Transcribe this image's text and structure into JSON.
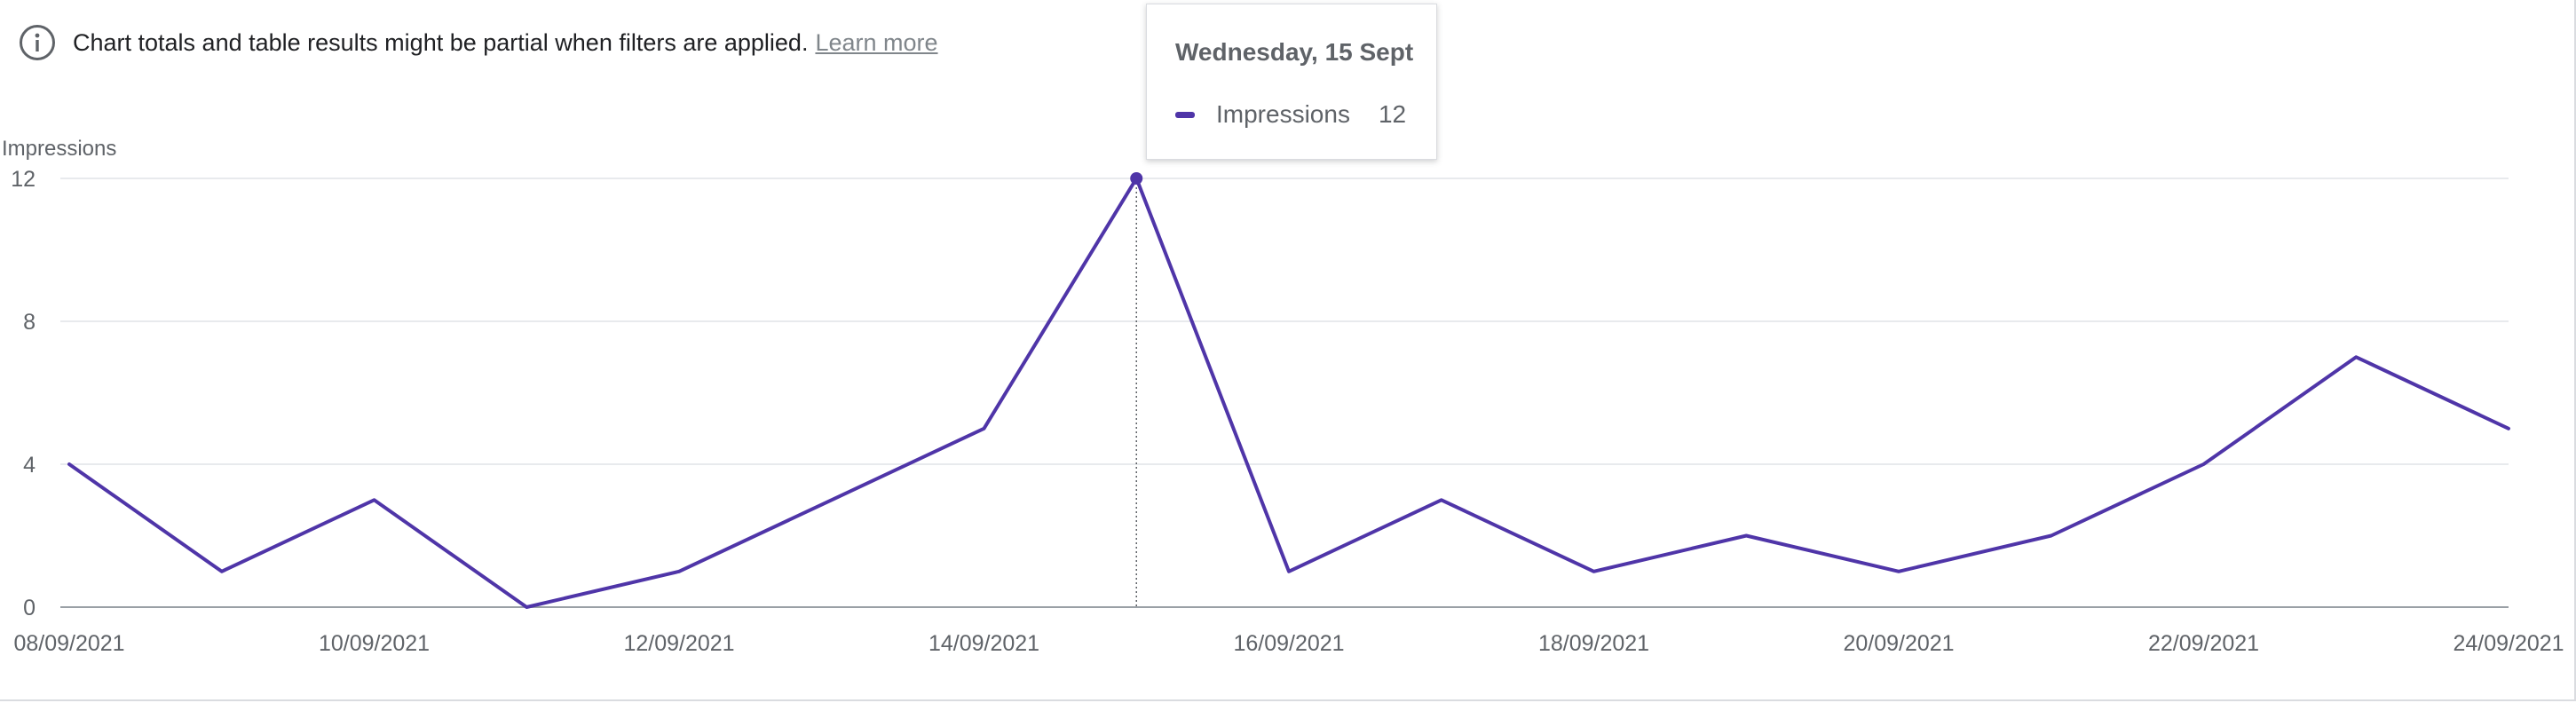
{
  "notice": {
    "icon": "info-icon",
    "text": "Chart totals and table results might be partial when filters are applied.",
    "link": "Learn more"
  },
  "tooltip": {
    "title": "Wednesday, 15 Sept",
    "series_name": "Impressions",
    "value": "12"
  },
  "colors": {
    "series": "#4f35a8",
    "grid": "#e8eaed",
    "axis": "#9aa0a6",
    "tick_text": "#5f6368"
  },
  "chart_data": {
    "type": "line",
    "ylabel": "Impressions",
    "xlabel": "",
    "ylim": [
      0,
      12
    ],
    "yticks": [
      0,
      4,
      8,
      12
    ],
    "grid": true,
    "x": [
      "08/09/2021",
      "09/09/2021",
      "10/09/2021",
      "11/09/2021",
      "12/09/2021",
      "13/09/2021",
      "14/09/2021",
      "15/09/2021",
      "16/09/2021",
      "17/09/2021",
      "18/09/2021",
      "19/09/2021",
      "20/09/2021",
      "21/09/2021",
      "22/09/2021",
      "23/09/2021",
      "24/09/2021"
    ],
    "xtick_labels": [
      "08/09/2021",
      "10/09/2021",
      "12/09/2021",
      "14/09/2021",
      "16/09/2021",
      "18/09/2021",
      "20/09/2021",
      "22/09/2021",
      "24/09/2021"
    ],
    "series": [
      {
        "name": "Impressions",
        "values": [
          4,
          1,
          3,
          0,
          1,
          3,
          5,
          12,
          1,
          3,
          1,
          2,
          1,
          2,
          4,
          7,
          5
        ]
      }
    ],
    "highlight": {
      "x": "15/09/2021",
      "value": 12
    }
  }
}
